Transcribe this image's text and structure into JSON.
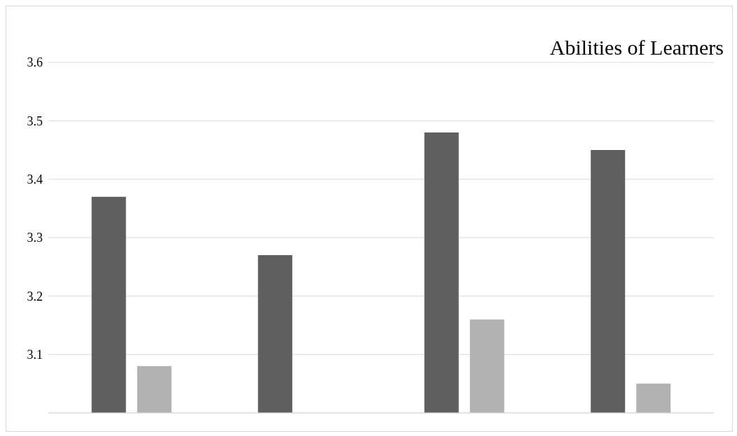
{
  "chart_data": {
    "type": "bar",
    "title": "Abilities of Learners",
    "categories": [
      null,
      null,
      null,
      null
    ],
    "series": [
      {
        "color": "#5f5f5f",
        "values": [
          3.37,
          3.27,
          3.48,
          3.45
        ]
      },
      {
        "color": "#b2b2b2",
        "values": [
          3.08,
          null,
          3.16,
          3.05
        ]
      }
    ],
    "ylim": [
      3.0,
      3.6
    ],
    "yticks": [
      3.1,
      3.2,
      3.3,
      3.4,
      3.5,
      3.6
    ],
    "grid": "y",
    "legend": false
  }
}
